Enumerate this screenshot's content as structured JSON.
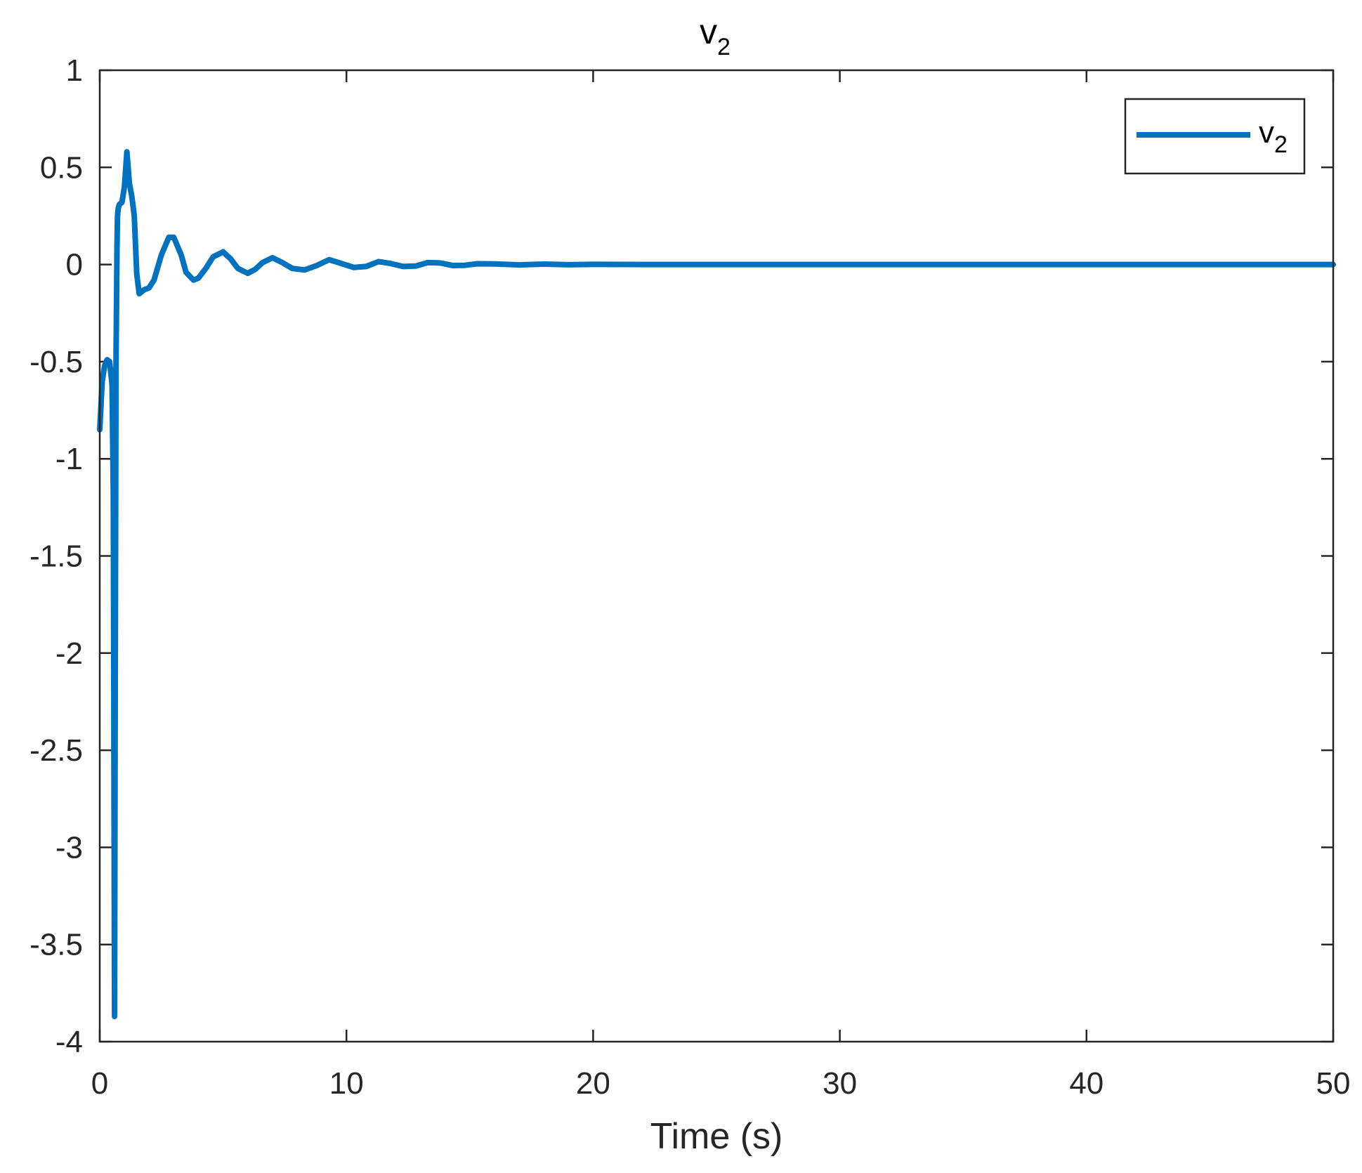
{
  "chart_data": {
    "type": "line",
    "title": {
      "base": "v",
      "subscript": "2"
    },
    "xlabel": "Time (s)",
    "ylabel": "",
    "xlim": [
      0,
      50
    ],
    "ylim": [
      -4,
      1
    ],
    "xticks": [
      0,
      10,
      20,
      30,
      40,
      50
    ],
    "xtick_labels": [
      "0",
      "10",
      "20",
      "30",
      "40",
      "50"
    ],
    "yticks": [
      1,
      0.5,
      0,
      -0.5,
      -1,
      -1.5,
      -2,
      -2.5,
      -3,
      -3.5,
      -4
    ],
    "ytick_labels": [
      "1",
      "0.5",
      "0",
      "-0.5",
      "-1",
      "-1.5",
      "-2",
      "-2.5",
      "-3",
      "-3.5",
      "-4"
    ],
    "grid": false,
    "legend": {
      "position": "top-right"
    },
    "series": [
      {
        "name": {
          "base": "v",
          "subscript": "2"
        },
        "color": "#0072BD",
        "x": [
          0,
          0.1,
          0.2,
          0.3,
          0.4,
          0.5,
          0.55,
          0.6,
          0.63,
          0.66,
          0.7,
          0.72,
          0.75,
          0.8,
          0.9,
          1.0,
          1.1,
          1.2,
          1.3,
          1.4,
          1.5,
          1.6,
          1.7,
          1.8,
          2.0,
          2.2,
          2.5,
          2.8,
          3.0,
          3.3,
          3.5,
          3.8,
          4.0,
          4.3,
          4.6,
          5.0,
          5.3,
          5.6,
          6.0,
          6.3,
          6.6,
          7.0,
          7.4,
          7.8,
          8.3,
          8.8,
          9.3,
          9.8,
          10.3,
          10.8,
          11.3,
          11.8,
          12.3,
          12.8,
          13.3,
          13.8,
          14.3,
          14.8,
          15.3,
          16,
          17,
          18,
          19,
          20,
          22,
          25,
          30,
          35,
          40,
          45,
          50
        ],
        "y": [
          -0.85,
          -0.6,
          -0.52,
          -0.49,
          -0.5,
          -0.62,
          -1.2,
          -3.87,
          -2.0,
          -0.5,
          0.1,
          0.25,
          0.29,
          0.31,
          0.32,
          0.4,
          0.58,
          0.42,
          0.35,
          0.25,
          -0.05,
          -0.15,
          -0.14,
          -0.13,
          -0.12,
          -0.08,
          0.05,
          0.14,
          0.14,
          0.05,
          -0.04,
          -0.08,
          -0.07,
          -0.02,
          0.04,
          0.065,
          0.03,
          -0.02,
          -0.045,
          -0.025,
          0.01,
          0.035,
          0.01,
          -0.02,
          -0.028,
          -0.005,
          0.025,
          0.005,
          -0.015,
          -0.01,
          0.015,
          0.005,
          -0.01,
          -0.008,
          0.01,
          0.008,
          -0.005,
          -0.004,
          0.004,
          0.003,
          -0.002,
          0.002,
          -0.001,
          0.001,
          0,
          0,
          0,
          0,
          0,
          0,
          0
        ]
      }
    ]
  }
}
